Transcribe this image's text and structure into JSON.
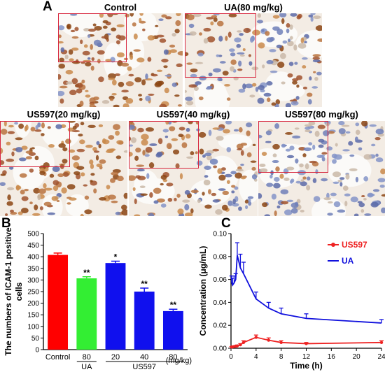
{
  "panel_a": {
    "letter": "A",
    "images": [
      {
        "title": "Control",
        "stain": "heavy"
      },
      {
        "title": "UA(80 mg/kg)",
        "stain": "light"
      },
      {
        "title": "US597(20 mg/kg)",
        "stain": "heavy"
      },
      {
        "title": "US597(40 mg/kg)",
        "stain": "medium"
      },
      {
        "title": "US597(80 mg/kg)",
        "stain": "minimal"
      }
    ]
  },
  "panel_b": {
    "letter": "B",
    "chart_data": {
      "type": "bar",
      "categories": [
        "Control",
        "80",
        "20",
        "40",
        "80"
      ],
      "values": [
        408,
        307,
        373,
        250,
        166
      ],
      "errors": [
        8,
        7,
        8,
        15,
        8
      ],
      "significance": [
        "",
        "**",
        "*",
        "**",
        "**"
      ],
      "bar_colors": [
        "#ff0000",
        "#33ee33",
        "#1010ee",
        "#1010ee",
        "#1010ee"
      ],
      "ylabel": "The numbers of ICAM-1 positive cells",
      "ylim": [
        0,
        500
      ],
      "yticks": [
        0,
        50,
        100,
        150,
        200,
        250,
        300,
        350,
        400,
        450,
        500
      ],
      "group_labels": [
        "UA",
        "US597"
      ],
      "unit_label": "(mg/kg)"
    }
  },
  "panel_c": {
    "letter": "C",
    "chart_data": {
      "type": "line",
      "xlabel": "Time (h)",
      "ylabel": "Concentration (μg/mL)",
      "xlim": [
        0,
        24
      ],
      "ylim": [
        0,
        0.1
      ],
      "xticks": [
        0,
        4,
        8,
        12,
        16,
        20,
        24
      ],
      "yticks": [
        "0.00",
        "0.02",
        "0.04",
        "0.06",
        "0.08",
        "0.10"
      ],
      "legend_position": "top-right",
      "series": [
        {
          "name": "US597",
          "color": "#ee2222",
          "x": [
            0.083,
            0.25,
            0.5,
            0.75,
            1,
            1.5,
            2,
            4,
            6,
            8,
            12,
            24
          ],
          "y": [
            0.001,
            0.0012,
            0.0015,
            0.0018,
            0.002,
            0.003,
            0.005,
            0.0095,
            0.007,
            0.005,
            0.004,
            0.005
          ],
          "err": [
            0.0005,
            0.0005,
            0.0005,
            0.0005,
            0.0008,
            0.001,
            0.0015,
            0.002,
            0.002,
            0.0015,
            0.001,
            0.0015
          ]
        },
        {
          "name": "UA",
          "color": "#1010dd",
          "x": [
            0.083,
            0.25,
            0.5,
            0.75,
            1,
            1.5,
            2,
            4,
            6,
            8,
            12,
            24
          ],
          "y": [
            0.058,
            0.055,
            0.057,
            0.06,
            0.081,
            0.07,
            0.065,
            0.043,
            0.035,
            0.03,
            0.026,
            0.022
          ],
          "err": [
            0.005,
            0.006,
            0.006,
            0.005,
            0.011,
            0.012,
            0.01,
            0.006,
            0.005,
            0.005,
            0.004,
            0.003
          ]
        }
      ]
    }
  }
}
